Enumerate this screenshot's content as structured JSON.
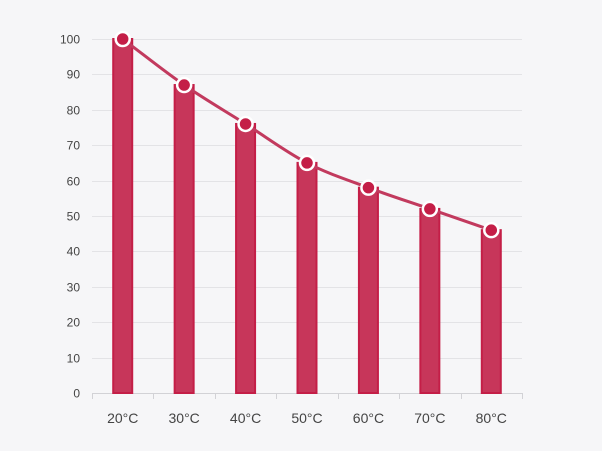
{
  "chart_data": {
    "type": "bar",
    "categories": [
      "20°C",
      "30°C",
      "40°C",
      "50°C",
      "60°C",
      "70°C",
      "80°C"
    ],
    "series": [
      {
        "type": "bar",
        "values": [
          100,
          87,
          76,
          65,
          58,
          52,
          46
        ]
      },
      {
        "type": "line",
        "smooth": true,
        "values": [
          100,
          87,
          76,
          65,
          58,
          52,
          46
        ]
      }
    ],
    "title": "",
    "xlabel": "",
    "ylabel": "",
    "ylim": [
      0,
      100
    ],
    "yticks": [
      0,
      10,
      20,
      30,
      40,
      50,
      60,
      70,
      80,
      90,
      100
    ],
    "grid": true,
    "legend": "none",
    "colors": {
      "bar_fill": "#c7365a",
      "bar_stroke": "#c41e47",
      "line": "#c23a5e",
      "marker_fill": "#c41e47",
      "marker_stroke": "#ffffff",
      "grid": "#e3e3e6",
      "axis": "#d2d2d6",
      "label": "#444444",
      "background": "#f6f6f8"
    }
  }
}
